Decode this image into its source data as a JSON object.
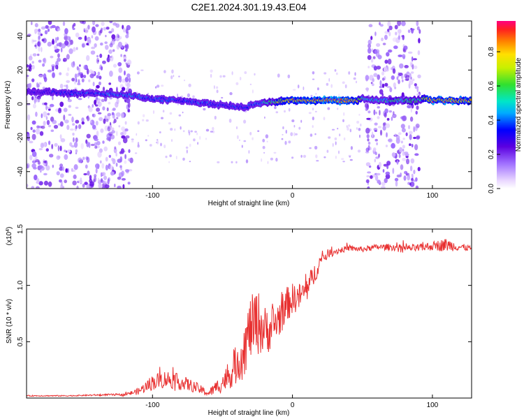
{
  "title": "C2E1.2024.301.19.43.E04",
  "chart_data": [
    {
      "type": "heatmap",
      "xlabel": "Height of straight line (km)",
      "ylabel": "Frequency (Hz)",
      "xlim": [
        -190,
        128
      ],
      "ylim": [
        -50,
        49
      ],
      "xticks": [
        -100,
        0,
        100
      ],
      "yticks": [
        -40,
        -20,
        0,
        20,
        40
      ],
      "colorbar": {
        "label": "Normalized spectral amplitude",
        "range": [
          0,
          0.98
        ],
        "ticks": [
          0.0,
          0.2,
          0.4,
          0.6,
          0.8
        ]
      },
      "noise_regions": [
        {
          "x": [
            -190,
            -115
          ],
          "amplitude_range": [
            0.05,
            0.25
          ]
        },
        {
          "x": [
            53,
            91
          ],
          "amplitude_range": [
            0.05,
            0.25
          ]
        }
      ],
      "signal_track": {
        "x": [
          -190,
          -170,
          -150,
          -130,
          -115,
          -100,
          -80,
          -60,
          -45,
          -35,
          -25,
          -15,
          -5,
          5,
          25,
          45,
          50,
          55,
          90,
          95,
          100,
          128
        ],
        "frequency": [
          7,
          7,
          6,
          6,
          5,
          3,
          2,
          0,
          -1,
          -2,
          0,
          1,
          2,
          2,
          2,
          2,
          3,
          2,
          2,
          3,
          2,
          2
        ],
        "amplitude": [
          0.3,
          0.35,
          0.4,
          0.45,
          0.45,
          0.4,
          0.4,
          0.4,
          0.35,
          0.4,
          0.45,
          0.6,
          0.85,
          0.9,
          0.95,
          0.9,
          0.6,
          0.5,
          0.6,
          0.8,
          0.9,
          0.9
        ]
      }
    },
    {
      "type": "line",
      "xlabel": "Height of straight line (km)",
      "ylabel": "SNR (10 * v/v)",
      "y_multiplier_label": "(x10",
      "y_multiplier_exp": "4",
      "y_multiplier_close": ")",
      "xlim": [
        -190,
        128
      ],
      "ylim": [
        0,
        1.5
      ],
      "xticks": [
        -100,
        0,
        100
      ],
      "yticks": [
        0.5,
        1.0,
        1.5
      ],
      "ytick_labels": [
        "0.5",
        "1.0",
        "1.5"
      ],
      "series": [
        {
          "color": "#e83030",
          "x": [
            -190,
            -160,
            -130,
            -120,
            -110,
            -100,
            -90,
            -80,
            -70,
            -60,
            -50,
            -45,
            -40,
            -35,
            -30,
            -25,
            -20,
            -15,
            -10,
            -5,
            0,
            5,
            10,
            15,
            20,
            25,
            30,
            40,
            50,
            60,
            70,
            80,
            90,
            100,
            110,
            120,
            128
          ],
          "y": [
            0.02,
            0.02,
            0.03,
            0.03,
            0.06,
            0.14,
            0.17,
            0.14,
            0.1,
            0.04,
            0.14,
            0.2,
            0.3,
            0.42,
            0.62,
            0.68,
            0.6,
            0.62,
            0.7,
            0.82,
            0.88,
            0.9,
            0.96,
            1.08,
            1.22,
            1.28,
            1.3,
            1.33,
            1.32,
            1.34,
            1.34,
            1.33,
            1.33,
            1.35,
            1.36,
            1.34,
            1.33
          ],
          "noise": [
            0.005,
            0.005,
            0.008,
            0.01,
            0.03,
            0.07,
            0.08,
            0.07,
            0.05,
            0.03,
            0.09,
            0.12,
            0.18,
            0.25,
            0.28,
            0.3,
            0.22,
            0.2,
            0.18,
            0.16,
            0.14,
            0.12,
            0.12,
            0.1,
            0.06,
            0.04,
            0.03,
            0.025,
            0.025,
            0.025,
            0.03,
            0.03,
            0.035,
            0.04,
            0.06,
            0.03,
            0.03
          ]
        }
      ]
    }
  ]
}
